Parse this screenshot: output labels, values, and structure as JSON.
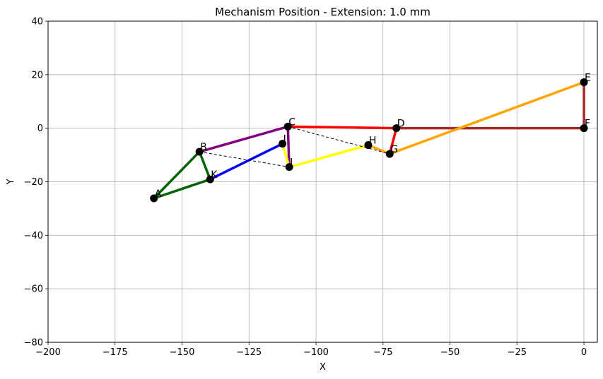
{
  "chart_data": {
    "type": "scatter",
    "title": "Mechanism Position - Extension: 1.0 mm",
    "xlabel": "X",
    "ylabel": "Y",
    "xlim": [
      -200,
      5
    ],
    "ylim": [
      -80,
      40
    ],
    "xticks": [
      -200,
      -175,
      -150,
      -125,
      -100,
      -75,
      -50,
      -25,
      0
    ],
    "yticks": [
      -80,
      -60,
      -40,
      -20,
      0,
      20,
      40
    ],
    "xtick_labels": [
      "−200",
      "−175",
      "−150",
      "−125",
      "−100",
      "−75",
      "−50",
      "−25",
      "0"
    ],
    "ytick_labels": [
      "−80",
      "−60",
      "−40",
      "−20",
      "0",
      "20",
      "40"
    ],
    "grid": true,
    "points": [
      {
        "name": "A",
        "x": -160.5,
        "y": -26.2
      },
      {
        "name": "B",
        "x": -143.5,
        "y": -8.8
      },
      {
        "name": "C",
        "x": -110.5,
        "y": 0.6
      },
      {
        "name": "D",
        "x": -70.0,
        "y": 0.0
      },
      {
        "name": "E",
        "x": 0.0,
        "y": 17.2
      },
      {
        "name": "F",
        "x": 0.0,
        "y": 0.0
      },
      {
        "name": "G",
        "x": -72.5,
        "y": -9.6
      },
      {
        "name": "H",
        "x": -80.5,
        "y": -6.3
      },
      {
        "name": "I",
        "x": -110.0,
        "y": -14.5
      },
      {
        "name": "J",
        "x": -112.5,
        "y": -5.8
      },
      {
        "name": "K",
        "x": -139.5,
        "y": -19.1
      }
    ],
    "links": [
      {
        "from": "A",
        "to": "B",
        "color": "#006400"
      },
      {
        "from": "B",
        "to": "K",
        "color": "#006400"
      },
      {
        "from": "K",
        "to": "A",
        "color": "#006400"
      },
      {
        "from": "B",
        "to": "C",
        "color": "#800080"
      },
      {
        "from": "C",
        "to": "I",
        "color": "#800080"
      },
      {
        "from": "K",
        "to": "J",
        "color": "#0000ff"
      },
      {
        "from": "J",
        "to": "I",
        "color": "#ffff00"
      },
      {
        "from": "I",
        "to": "H",
        "color": "#ffff00"
      },
      {
        "from": "H",
        "to": "G",
        "color": "#ffa500"
      },
      {
        "from": "C",
        "to": "D",
        "color": "#ff0000"
      },
      {
        "from": "D",
        "to": "G",
        "color": "#ff0000"
      },
      {
        "from": "D",
        "to": "F",
        "color": "#a52a2a"
      },
      {
        "from": "F",
        "to": "E",
        "color": "#a52a2a"
      },
      {
        "from": "G",
        "to": "E",
        "color": "#ffa500"
      }
    ],
    "dashed_links": [
      {
        "from": "B",
        "to": "I"
      },
      {
        "from": "C",
        "to": "G"
      }
    ],
    "marker_color": "#000000",
    "grid_color": "#b0b0b0"
  }
}
